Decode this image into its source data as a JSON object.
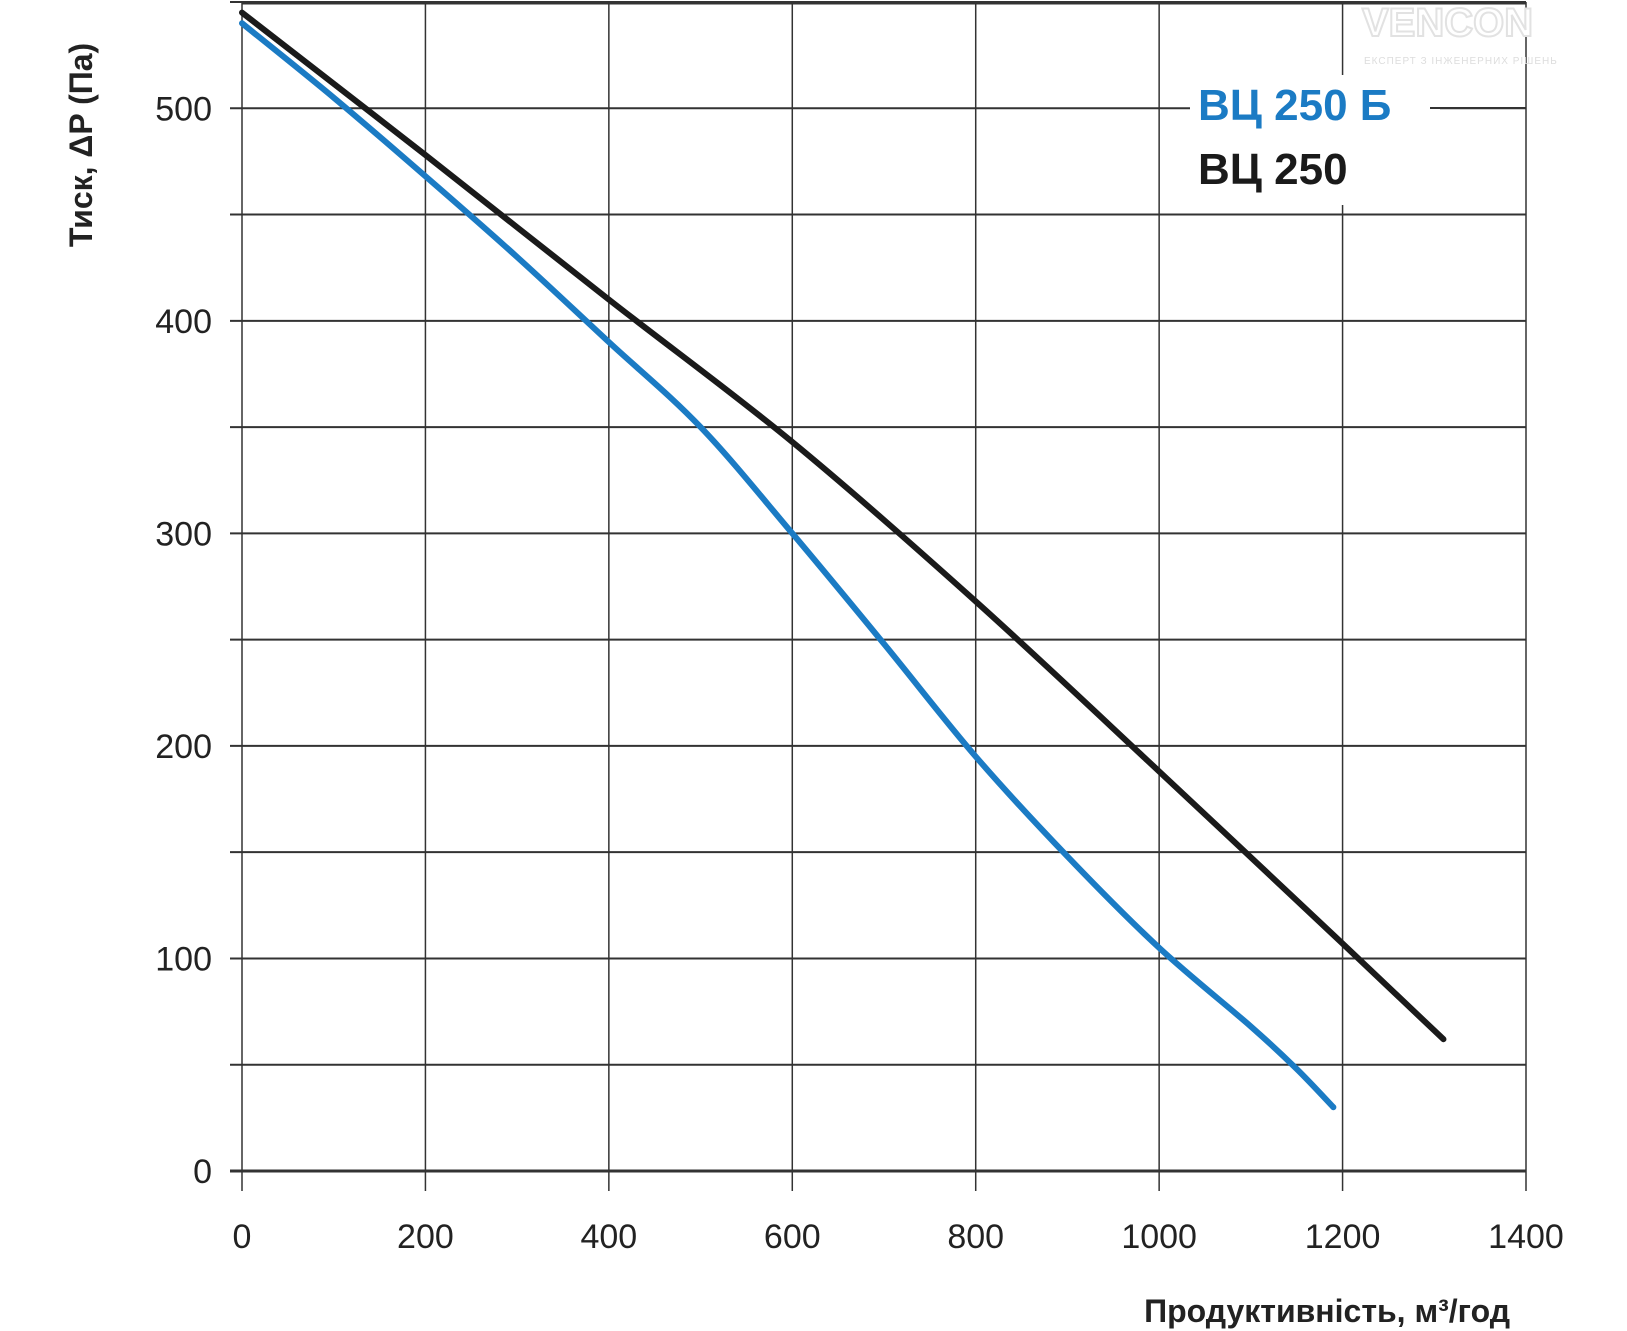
{
  "chart_data": {
    "type": "line",
    "title": "",
    "xlabel": "Продуктивність, м³/год",
    "ylabel": "Тиск, ΔP (Па)",
    "xlim": [
      0,
      1400
    ],
    "ylim": [
      0,
      550
    ],
    "x_ticks": [
      "0",
      "200",
      "400",
      "600",
      "800",
      "1000",
      "1200",
      "1400"
    ],
    "y_ticks": [
      "0",
      "100",
      "200",
      "300",
      "400",
      "500"
    ],
    "grid": true,
    "legend_position": "top-right",
    "series": [
      {
        "name": "ВЦ 250 Б",
        "color": "#1b7bc4",
        "x": [
          0,
          100,
          200,
          300,
          400,
          500,
          600,
          700,
          800,
          900,
          1000,
          1100,
          1150,
          1190
        ],
        "y": [
          540,
          505,
          468,
          430,
          390,
          350,
          300,
          248,
          195,
          148,
          105,
          68,
          48,
          30
        ]
      },
      {
        "name": "ВЦ 250",
        "color": "#1a1a1a",
        "x": [
          0,
          200,
          400,
          600,
          800,
          1000,
          1200,
          1310
        ],
        "y": [
          545,
          478,
          410,
          343,
          268,
          188,
          107,
          62
        ]
      }
    ]
  },
  "logo": {
    "name": "VENCON",
    "tagline": "ЕКСПЕРТ З ІНЖЕНЕРНИХ РІШЕНЬ"
  }
}
